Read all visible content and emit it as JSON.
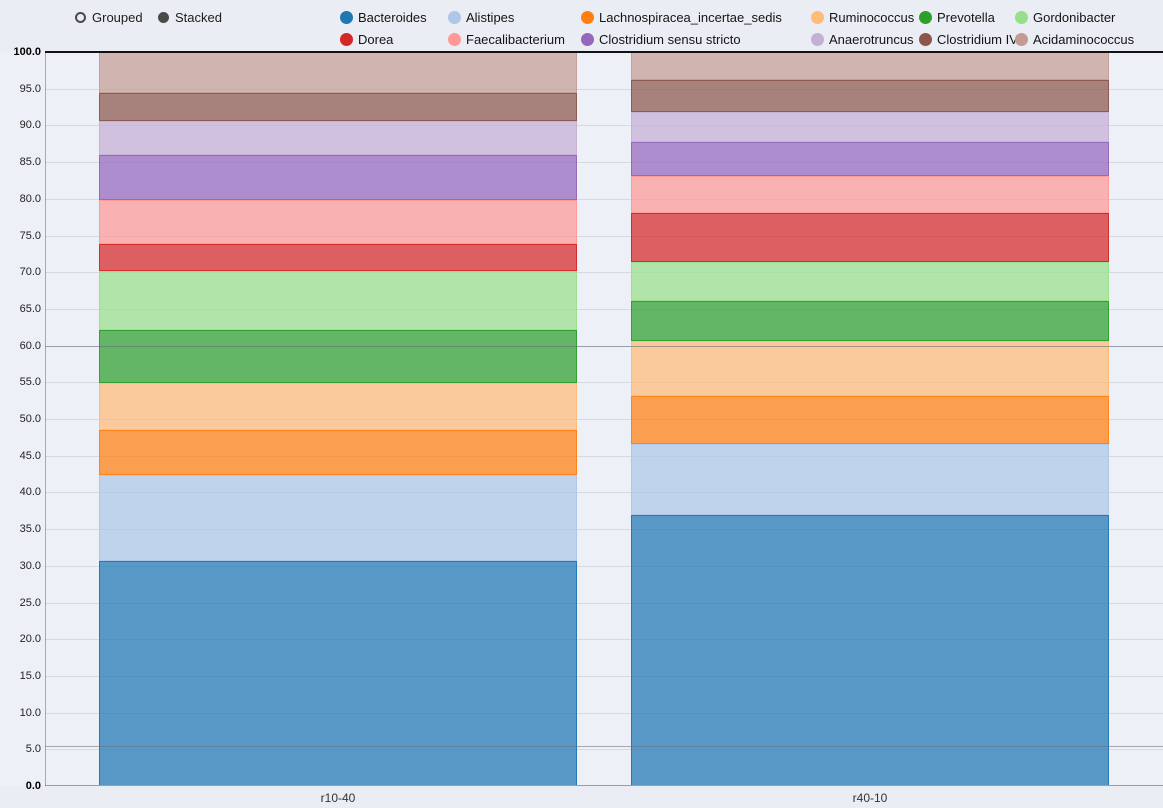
{
  "controls": {
    "modes": [
      {
        "label": "Grouped",
        "selected": false
      },
      {
        "label": "Stacked",
        "selected": true
      }
    ]
  },
  "chart_data": {
    "type": "bar",
    "mode": "stacked",
    "title": "",
    "xlabel": "",
    "ylabel": "",
    "categories": [
      "r10-40",
      "r40-10"
    ],
    "series": [
      {
        "name": "Bacteroides",
        "color": "#1f77b4",
        "values": [
          30.7,
          36.9
        ]
      },
      {
        "name": "Alistipes",
        "color": "#aec7e8",
        "values": [
          11.7,
          9.7
        ]
      },
      {
        "name": "Lachnospiracea_incertae_sedis",
        "color": "#ff7f0e",
        "values": [
          6.1,
          6.5
        ]
      },
      {
        "name": "Ruminococcus",
        "color": "#ffbb78",
        "values": [
          6.4,
          7.5
        ]
      },
      {
        "name": "Prevotella",
        "color": "#2ca02c",
        "values": [
          7.2,
          5.5
        ]
      },
      {
        "name": "Gordonibacter",
        "color": "#98df8a",
        "values": [
          8.0,
          5.3
        ]
      },
      {
        "name": "Dorea",
        "color": "#d62728",
        "values": [
          3.7,
          6.7
        ]
      },
      {
        "name": "Faecalibacterium",
        "color": "#ff9896",
        "values": [
          6.1,
          5.0
        ]
      },
      {
        "name": "Clostridium sensu stricto",
        "color": "#9467bd",
        "values": [
          6.1,
          4.6
        ]
      },
      {
        "name": "Anaerotruncus",
        "color": "#c5b0d5",
        "values": [
          4.6,
          4.1
        ]
      },
      {
        "name": "Clostridium IV",
        "color": "#8c564b",
        "values": [
          3.8,
          4.4
        ]
      },
      {
        "name": "Acidaminococcus",
        "color": "#c49c94",
        "values": [
          5.6,
          3.8
        ]
      }
    ],
    "ylim": [
      0,
      100
    ],
    "ytick_step": 5,
    "ytick_decimals": 1,
    "grid": true,
    "legend_position": "top",
    "reference_lines": [
      60,
      5.4
    ]
  }
}
